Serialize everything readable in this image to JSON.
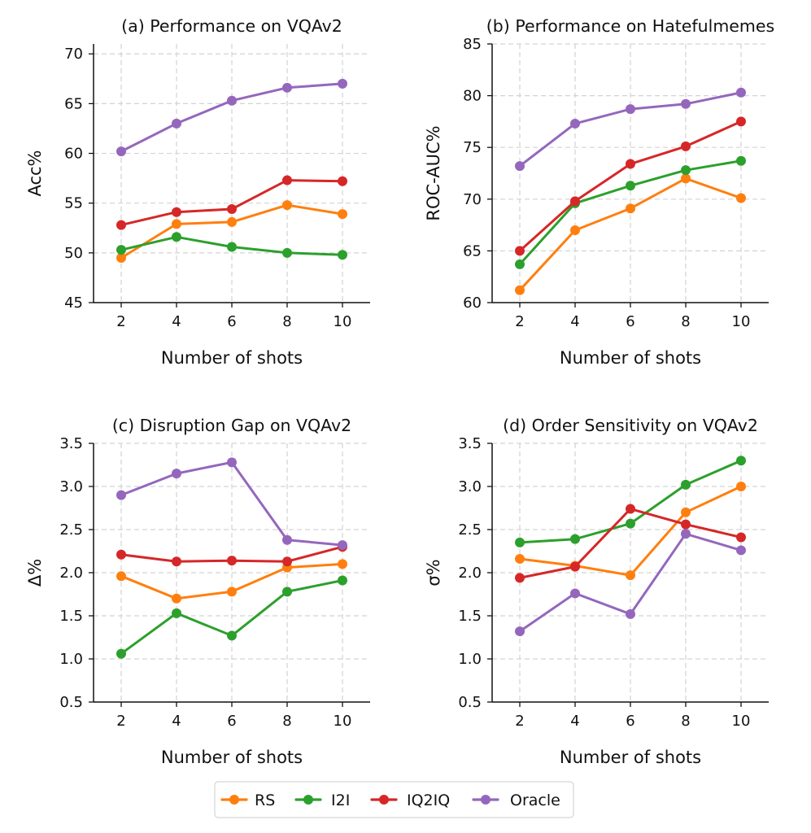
{
  "figure": {
    "x_values": [
      2,
      4,
      6,
      8,
      10
    ],
    "series_colors": {
      "RS": "#ff7f0e",
      "I2I": "#2ca02c",
      "IQ2IQ": "#d62728",
      "Oracle": "#9467bd"
    }
  },
  "legend": {
    "items": [
      {
        "name": "RS",
        "color": "#ff7f0e"
      },
      {
        "name": "I2I",
        "color": "#2ca02c"
      },
      {
        "name": "IQ2IQ",
        "color": "#d62728"
      },
      {
        "name": "Oracle",
        "color": "#9467bd"
      }
    ]
  },
  "chart_data": [
    {
      "type": "line",
      "title": "(a) Performance on VQAv2",
      "xlabel": "Number of shots",
      "ylabel": "Acc%",
      "x": [
        2,
        4,
        6,
        8,
        10
      ],
      "xlim": [
        1,
        11
      ],
      "ylim": [
        45,
        71
      ],
      "yticks": [
        45,
        50,
        55,
        60,
        65,
        70
      ],
      "ytick_labels": [
        "45",
        "50",
        "55",
        "60",
        "65",
        "70"
      ],
      "xticks": [
        2,
        4,
        6,
        8,
        10
      ],
      "xtick_labels": [
        "2",
        "4",
        "6",
        "8",
        "10"
      ],
      "grid": true,
      "series": [
        {
          "name": "RS",
          "values": [
            49.5,
            52.9,
            53.1,
            54.8,
            53.9
          ]
        },
        {
          "name": "I2I",
          "values": [
            50.3,
            51.6,
            50.6,
            50.0,
            49.8
          ]
        },
        {
          "name": "IQ2IQ",
          "values": [
            52.8,
            54.1,
            54.4,
            57.3,
            57.2
          ]
        },
        {
          "name": "Oracle",
          "values": [
            60.2,
            63.0,
            65.3,
            66.6,
            67.0
          ]
        }
      ]
    },
    {
      "type": "line",
      "title": "(b) Performance on Hatefulmemes",
      "xlabel": "Number of shots",
      "ylabel": "ROC-AUC%",
      "x": [
        2,
        4,
        6,
        8,
        10
      ],
      "xlim": [
        1,
        11
      ],
      "ylim": [
        60,
        85
      ],
      "yticks": [
        60,
        65,
        70,
        75,
        80,
        85
      ],
      "ytick_labels": [
        "60",
        "65",
        "70",
        "75",
        "80",
        "85"
      ],
      "xticks": [
        2,
        4,
        6,
        8,
        10
      ],
      "xtick_labels": [
        "2",
        "4",
        "6",
        "8",
        "10"
      ],
      "grid": true,
      "series": [
        {
          "name": "RS",
          "values": [
            61.2,
            67.0,
            69.1,
            72.0,
            70.1
          ]
        },
        {
          "name": "I2I",
          "values": [
            63.7,
            69.6,
            71.3,
            72.8,
            73.7
          ]
        },
        {
          "name": "IQ2IQ",
          "values": [
            65.0,
            69.8,
            73.4,
            75.1,
            77.5
          ]
        },
        {
          "name": "Oracle",
          "values": [
            73.2,
            77.3,
            78.7,
            79.2,
            80.3
          ]
        }
      ]
    },
    {
      "type": "line",
      "title": "(c) Disruption Gap on VQAv2",
      "xlabel": "Number of shots",
      "ylabel": "Δ%",
      "x": [
        2,
        4,
        6,
        8,
        10
      ],
      "xlim": [
        1,
        11
      ],
      "ylim": [
        0.5,
        3.5
      ],
      "yticks": [
        0.5,
        1.0,
        1.5,
        2.0,
        2.5,
        3.0,
        3.5
      ],
      "ytick_labels": [
        "0.5",
        "1.0",
        "1.5",
        "2.0",
        "2.5",
        "3.0",
        "3.5"
      ],
      "xticks": [
        2,
        4,
        6,
        8,
        10
      ],
      "xtick_labels": [
        "2",
        "4",
        "6",
        "8",
        "10"
      ],
      "grid": true,
      "series": [
        {
          "name": "RS",
          "values": [
            1.96,
            1.7,
            1.78,
            2.06,
            2.1
          ]
        },
        {
          "name": "I2I",
          "values": [
            1.06,
            1.53,
            1.27,
            1.78,
            1.91
          ]
        },
        {
          "name": "IQ2IQ",
          "values": [
            2.21,
            2.13,
            2.14,
            2.13,
            2.3
          ]
        },
        {
          "name": "Oracle",
          "values": [
            2.9,
            3.15,
            3.28,
            2.38,
            2.32
          ]
        }
      ]
    },
    {
      "type": "line",
      "title": "(d) Order Sensitivity on VQAv2",
      "xlabel": "Number of shots",
      "ylabel": "σ%",
      "x": [
        2,
        4,
        6,
        8,
        10
      ],
      "xlim": [
        1,
        11
      ],
      "ylim": [
        0.5,
        3.5
      ],
      "yticks": [
        0.5,
        1.0,
        1.5,
        2.0,
        2.5,
        3.0,
        3.5
      ],
      "ytick_labels": [
        "0.5",
        "1.0",
        "1.5",
        "2.0",
        "2.5",
        "3.0",
        "3.5"
      ],
      "xticks": [
        2,
        4,
        6,
        8,
        10
      ],
      "xtick_labels": [
        "2",
        "4",
        "6",
        "8",
        "10"
      ],
      "grid": true,
      "series": [
        {
          "name": "RS",
          "values": [
            2.16,
            2.08,
            1.97,
            2.7,
            3.0
          ]
        },
        {
          "name": "I2I",
          "values": [
            2.35,
            2.39,
            2.57,
            3.02,
            3.3
          ]
        },
        {
          "name": "IQ2IQ",
          "values": [
            1.94,
            2.07,
            2.74,
            2.56,
            2.41
          ]
        },
        {
          "name": "Oracle",
          "values": [
            1.32,
            1.76,
            1.52,
            2.45,
            2.26
          ]
        }
      ]
    }
  ]
}
